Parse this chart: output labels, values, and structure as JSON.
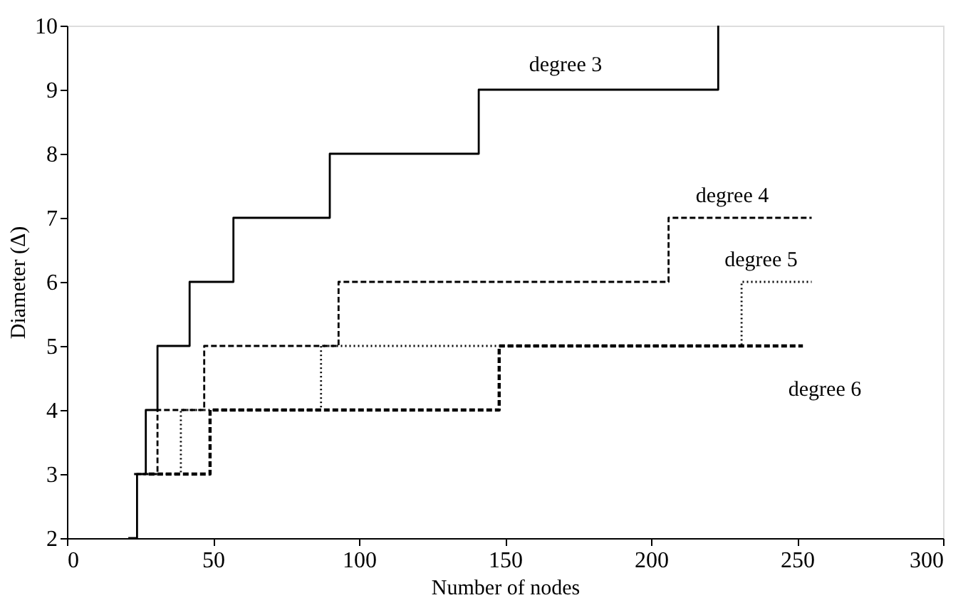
{
  "chart_data": {
    "type": "step",
    "xlabel": "Number of nodes",
    "ylabel": "Diameter (Δ)",
    "xlim": [
      0,
      300
    ],
    "xticks": [
      0,
      50,
      100,
      150,
      200,
      250,
      300
    ],
    "ylim": [
      2,
      10
    ],
    "yticks": [
      2,
      3,
      4,
      5,
      6,
      7,
      8,
      9,
      10
    ],
    "grid": false,
    "series": [
      {
        "color": "#000000",
        "line_style": "solid",
        "x": [
          21,
          24,
          27,
          31,
          42,
          57,
          90,
          141,
          223
        ],
        "values": [
          2,
          3,
          4,
          5,
          6,
          7,
          8,
          9,
          10
        ]
      },
      {
        "color": "#000000",
        "line_style": "dashed",
        "x": [
          23,
          31,
          47,
          93,
          206,
          255
        ],
        "values": [
          3,
          4,
          5,
          6,
          7,
          7
        ]
      },
      {
        "color": "#000000",
        "line_style": "dotted",
        "x": [
          25,
          39,
          87,
          231,
          255
        ],
        "values": [
          3,
          4,
          5,
          6,
          6
        ]
      },
      {
        "color": "#000000",
        "line_style": "dashed",
        "x": [
          28,
          49,
          148,
          252
        ],
        "values": [
          3,
          4,
          5,
          5
        ]
      }
    ],
    "annotations": [
      {
        "text": "degree 3",
        "x": 200,
        "y": 9
      },
      {
        "text": "degree 4",
        "x": 240,
        "y": 7
      },
      {
        "text": "degree 5",
        "x": 245,
        "y": 6
      },
      {
        "text": "degree 6",
        "x": 240,
        "y": 5
      }
    ]
  }
}
